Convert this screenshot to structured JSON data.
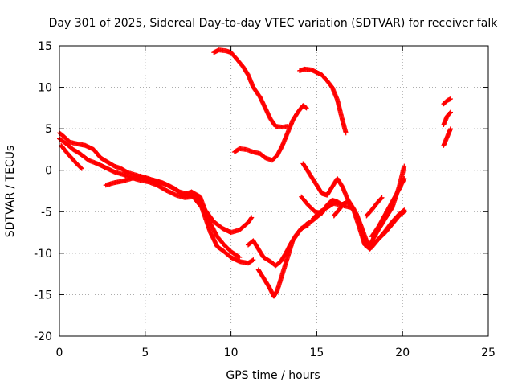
{
  "chart_data": {
    "type": "scatter",
    "title": "Day 301 of 2025, Sidereal Day-to-day VTEC variation (SDTVAR) for receiver falk",
    "xlabel": "GPS time / hours",
    "ylabel": "SDTVAR / TECUs",
    "xlim": [
      0,
      25
    ],
    "ylim": [
      -20,
      15
    ],
    "xticks": [
      0,
      5,
      10,
      15,
      20,
      25
    ],
    "yticks": [
      -20,
      -15,
      -10,
      -5,
      0,
      5,
      10,
      15
    ],
    "grid": true,
    "marker": "+",
    "color": "#ff0000",
    "series": [
      {
        "points": [
          [
            0.0,
            4.5
          ],
          [
            0.3,
            4.0
          ],
          [
            0.6,
            3.4
          ],
          [
            1.0,
            3.2
          ],
          [
            1.5,
            3.0
          ],
          [
            2.0,
            2.5
          ],
          [
            2.4,
            1.5
          ],
          [
            2.8,
            1.0
          ],
          [
            3.2,
            0.5
          ],
          [
            3.6,
            0.2
          ],
          [
            4.0,
            -0.3
          ],
          [
            4.5,
            -0.6
          ],
          [
            5.0,
            -1.0
          ],
          [
            5.5,
            -1.2
          ],
          [
            6.0,
            -1.5
          ],
          [
            6.5,
            -2.0
          ],
          [
            7.0,
            -2.6
          ],
          [
            7.5,
            -2.9
          ],
          [
            8.0,
            -3.0
          ],
          [
            8.5,
            -4.8
          ],
          [
            9.0,
            -6.2
          ],
          [
            9.5,
            -7.0
          ],
          [
            10.0,
            -7.5
          ],
          [
            10.5,
            -7.2
          ],
          [
            11.0,
            -6.3
          ],
          [
            11.2,
            -5.7
          ]
        ]
      },
      {
        "points": [
          [
            0.0,
            3.8
          ],
          [
            0.4,
            3.2
          ],
          [
            0.8,
            2.5
          ],
          [
            1.2,
            2.0
          ],
          [
            1.7,
            1.2
          ],
          [
            2.2,
            0.8
          ],
          [
            2.7,
            0.3
          ],
          [
            3.2,
            -0.2
          ],
          [
            3.7,
            -0.5
          ],
          [
            4.2,
            -0.9
          ],
          [
            4.7,
            -1.2
          ],
          [
            5.2,
            -1.4
          ],
          [
            5.7,
            -1.8
          ],
          [
            6.2,
            -2.4
          ],
          [
            6.8,
            -3.0
          ],
          [
            7.3,
            -3.3
          ],
          [
            7.8,
            -3.2
          ],
          [
            8.3,
            -4.5
          ],
          [
            8.8,
            -7.5
          ],
          [
            9.2,
            -9.2
          ],
          [
            9.6,
            -9.8
          ],
          [
            10.0,
            -10.5
          ],
          [
            10.5,
            -11.0
          ],
          [
            11.0,
            -11.2
          ],
          [
            11.3,
            -10.8
          ]
        ]
      },
      {
        "points": [
          [
            0.1,
            3.0
          ],
          [
            0.4,
            2.2
          ],
          [
            0.7,
            1.5
          ],
          [
            1.0,
            0.8
          ],
          [
            1.3,
            0.2
          ]
        ]
      },
      {
        "points": [
          [
            2.7,
            -1.8
          ],
          [
            3.2,
            -1.5
          ],
          [
            3.7,
            -1.3
          ],
          [
            4.2,
            -1.0
          ],
          [
            4.7,
            -0.7
          ],
          [
            5.2,
            -1.0
          ],
          [
            5.7,
            -1.4
          ],
          [
            6.2,
            -1.7
          ],
          [
            6.7,
            -2.2
          ],
          [
            7.2,
            -3.0
          ],
          [
            7.7,
            -2.6
          ],
          [
            8.2,
            -3.2
          ],
          [
            8.7,
            -6.0
          ],
          [
            9.2,
            -8.0
          ],
          [
            9.6,
            -9.0
          ],
          [
            10.0,
            -9.8
          ],
          [
            10.5,
            -10.5
          ]
        ]
      },
      {
        "points": [
          [
            11.0,
            -9.0
          ],
          [
            11.3,
            -8.5
          ],
          [
            11.6,
            -9.5
          ],
          [
            11.9,
            -10.5
          ],
          [
            12.3,
            -11.0
          ],
          [
            12.6,
            -11.5
          ],
          [
            12.9,
            -11.0
          ],
          [
            13.2,
            -10.0
          ],
          [
            13.5,
            -8.8
          ],
          [
            13.8,
            -7.8
          ],
          [
            14.1,
            -7.0
          ],
          [
            14.5,
            -6.6
          ]
        ]
      },
      {
        "points": [
          [
            11.6,
            -12.0
          ],
          [
            11.9,
            -13.0
          ],
          [
            12.2,
            -14.0
          ],
          [
            12.5,
            -15.2
          ],
          [
            12.7,
            -14.5
          ],
          [
            13.0,
            -12.5
          ],
          [
            13.3,
            -10.5
          ],
          [
            13.6,
            -8.5
          ],
          [
            14.0,
            -7.3
          ],
          [
            14.4,
            -6.5
          ],
          [
            14.8,
            -6.0
          ],
          [
            15.2,
            -5.3
          ]
        ]
      },
      {
        "points": [
          [
            9.0,
            14.2
          ],
          [
            9.3,
            14.5
          ],
          [
            9.7,
            14.4
          ],
          [
            10.0,
            14.2
          ],
          [
            10.3,
            13.5
          ],
          [
            10.7,
            12.5
          ],
          [
            11.0,
            11.5
          ],
          [
            11.3,
            10.0
          ],
          [
            11.7,
            8.8
          ],
          [
            12.0,
            7.5
          ],
          [
            12.3,
            6.2
          ],
          [
            12.6,
            5.3
          ],
          [
            13.0,
            5.2
          ],
          [
            13.3,
            5.3
          ]
        ]
      },
      {
        "points": [
          [
            10.2,
            2.2
          ],
          [
            10.5,
            2.6
          ],
          [
            10.9,
            2.5
          ],
          [
            11.3,
            2.2
          ],
          [
            11.7,
            2.0
          ],
          [
            12.0,
            1.5
          ],
          [
            12.4,
            1.2
          ],
          [
            12.7,
            1.8
          ],
          [
            13.0,
            3.0
          ],
          [
            13.3,
            4.5
          ],
          [
            13.6,
            6.0
          ],
          [
            13.9,
            7.0
          ],
          [
            14.2,
            7.8
          ],
          [
            14.4,
            7.5
          ]
        ]
      },
      {
        "points": [
          [
            14.0,
            12.0
          ],
          [
            14.3,
            12.2
          ],
          [
            14.7,
            12.1
          ],
          [
            15.0,
            11.8
          ],
          [
            15.3,
            11.5
          ],
          [
            15.6,
            10.8
          ],
          [
            15.9,
            10.0
          ],
          [
            16.2,
            8.5
          ],
          [
            16.5,
            6.0
          ],
          [
            16.7,
            4.5
          ]
        ]
      },
      {
        "points": [
          [
            14.1,
            -3.2
          ],
          [
            14.5,
            -4.2
          ],
          [
            14.9,
            -5.0
          ],
          [
            15.3,
            -5.2
          ],
          [
            15.6,
            -4.2
          ],
          [
            15.9,
            -3.6
          ],
          [
            16.2,
            -3.8
          ],
          [
            16.6,
            -4.3
          ],
          [
            17.0,
            -4.5
          ],
          [
            17.3,
            -5.2
          ],
          [
            17.6,
            -6.8
          ],
          [
            17.9,
            -8.5
          ],
          [
            18.2,
            -9.3
          ],
          [
            18.6,
            -8.3
          ],
          [
            19.0,
            -7.3
          ],
          [
            19.4,
            -6.2
          ],
          [
            19.8,
            -5.3
          ],
          [
            20.1,
            -4.8
          ]
        ]
      },
      {
        "points": [
          [
            14.2,
            0.8
          ],
          [
            14.6,
            -0.5
          ],
          [
            15.0,
            -1.8
          ],
          [
            15.3,
            -2.8
          ],
          [
            15.6,
            -3.0
          ],
          [
            15.9,
            -2.0
          ],
          [
            16.2,
            -1.0
          ],
          [
            16.5,
            -2.0
          ],
          [
            16.8,
            -3.5
          ],
          [
            17.2,
            -4.8
          ],
          [
            17.5,
            -6.5
          ],
          [
            17.8,
            -8.8
          ],
          [
            18.1,
            -9.0
          ],
          [
            18.5,
            -7.5
          ],
          [
            19.0,
            -5.8
          ],
          [
            19.4,
            -4.5
          ],
          [
            19.8,
            -2.0
          ],
          [
            20.1,
            0.5
          ]
        ]
      },
      {
        "points": [
          [
            14.8,
            -5.8
          ],
          [
            15.2,
            -5.0
          ],
          [
            15.6,
            -4.5
          ],
          [
            16.0,
            -4.0
          ],
          [
            16.4,
            -4.2
          ],
          [
            16.8,
            -3.8
          ],
          [
            17.1,
            -4.5
          ],
          [
            17.5,
            -7.0
          ],
          [
            17.8,
            -9.0
          ],
          [
            18.1,
            -9.5
          ],
          [
            18.5,
            -8.5
          ],
          [
            19.0,
            -7.5
          ],
          [
            19.4,
            -6.5
          ],
          [
            19.8,
            -5.5
          ],
          [
            20.1,
            -5.0
          ]
        ]
      },
      {
        "points": [
          [
            16.0,
            -5.5
          ],
          [
            16.2,
            -5.0
          ],
          [
            16.4,
            -4.5
          ]
        ]
      },
      {
        "points": [
          [
            17.9,
            -5.5
          ],
          [
            18.2,
            -4.8
          ],
          [
            18.5,
            -4.0
          ],
          [
            18.8,
            -3.3
          ]
        ]
      },
      {
        "points": [
          [
            18.2,
            -8.0
          ],
          [
            18.6,
            -6.8
          ],
          [
            19.0,
            -5.3
          ],
          [
            19.4,
            -3.8
          ],
          [
            19.8,
            -2.3
          ],
          [
            20.1,
            -1.0
          ]
        ]
      },
      {
        "points": [
          [
            22.4,
            8.0
          ],
          [
            22.6,
            8.4
          ],
          [
            22.8,
            8.6
          ]
        ]
      },
      {
        "points": [
          [
            22.4,
            5.5
          ],
          [
            22.6,
            6.5
          ],
          [
            22.8,
            7.0
          ]
        ]
      },
      {
        "points": [
          [
            22.4,
            3.0
          ],
          [
            22.6,
            4.0
          ],
          [
            22.8,
            5.0
          ]
        ]
      }
    ]
  }
}
